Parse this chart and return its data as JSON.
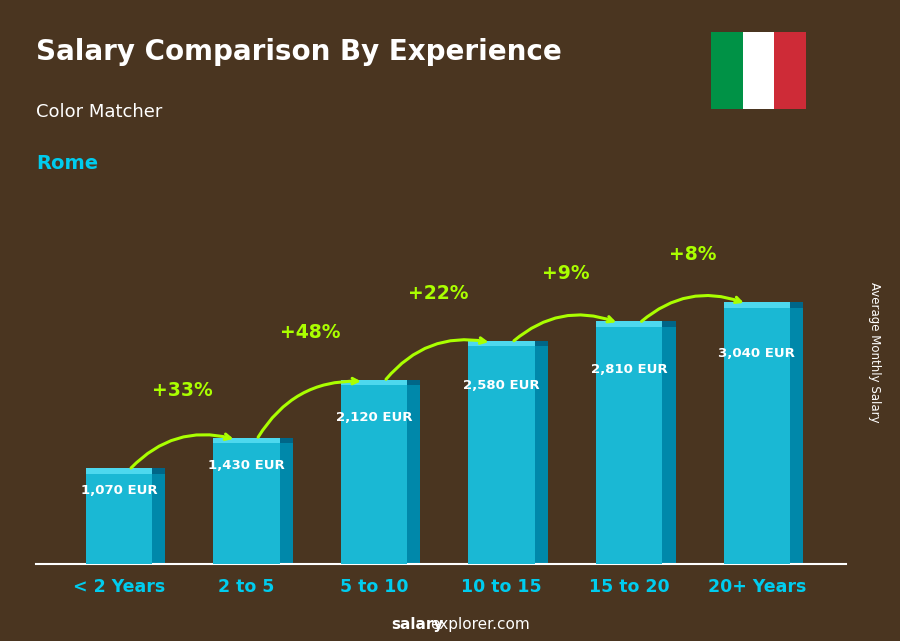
{
  "categories": [
    "< 2 Years",
    "2 to 5",
    "5 to 10",
    "10 to 15",
    "15 to 20",
    "20+ Years"
  ],
  "values": [
    1070,
    1430,
    2120,
    2580,
    2810,
    3040
  ],
  "labels": [
    "1,070 EUR",
    "1,430 EUR",
    "2,120 EUR",
    "2,580 EUR",
    "2,810 EUR",
    "3,040 EUR"
  ],
  "pct_changes": [
    null,
    "+33%",
    "+48%",
    "+22%",
    "+9%",
    "+8%"
  ],
  "bar_color_front": "#1ab8d4",
  "bar_color_top": "#4dd8ee",
  "bar_color_side": "#0088aa",
  "title": "Salary Comparison By Experience",
  "subtitle": "Color Matcher",
  "city": "Rome",
  "ylabel": "Average Monthly Salary",
  "fig_bg": "#4a3520",
  "title_color": "#ffffff",
  "subtitle_color": "#ffffff",
  "city_color": "#00ccee",
  "label_color": "#ffffff",
  "pct_color": "#aaff00",
  "arrow_color": "#aaff00",
  "xticklabel_color": "#00ccee",
  "footer_bold": "salary",
  "footer_regular": "explorer.com",
  "italy_green": "#009246",
  "italy_white": "#ffffff",
  "italy_red": "#ce2b37"
}
